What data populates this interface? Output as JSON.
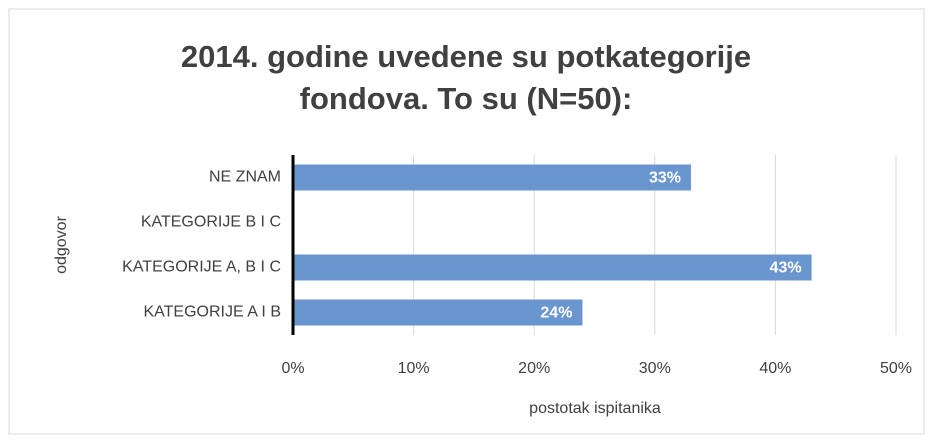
{
  "chart_data": {
    "type": "barh",
    "title": "2014. godine uvedene su potkategorije fondova. To su (N=50):",
    "categories": [
      "NE ZNAM",
      "KATEGORIJE B I C",
      "KATEGORIJE A, B I C",
      "KATEGORIJE A I B"
    ],
    "values": [
      33,
      0,
      43,
      24
    ],
    "value_labels": [
      "33%",
      null,
      "43%",
      "24%"
    ],
    "color": "#6a96cf",
    "xlim": [
      0,
      50
    ],
    "xticks": [
      {
        "value": 0,
        "label": "0%"
      },
      {
        "value": 10,
        "label": "10%"
      },
      {
        "value": 20,
        "label": "20%"
      },
      {
        "value": 30,
        "label": "30%"
      },
      {
        "value": 40,
        "label": "40%"
      },
      {
        "value": 50,
        "label": "50%"
      }
    ],
    "xlabel": "postotak ispitanika",
    "ylabel": "odgovor",
    "grid": true
  }
}
